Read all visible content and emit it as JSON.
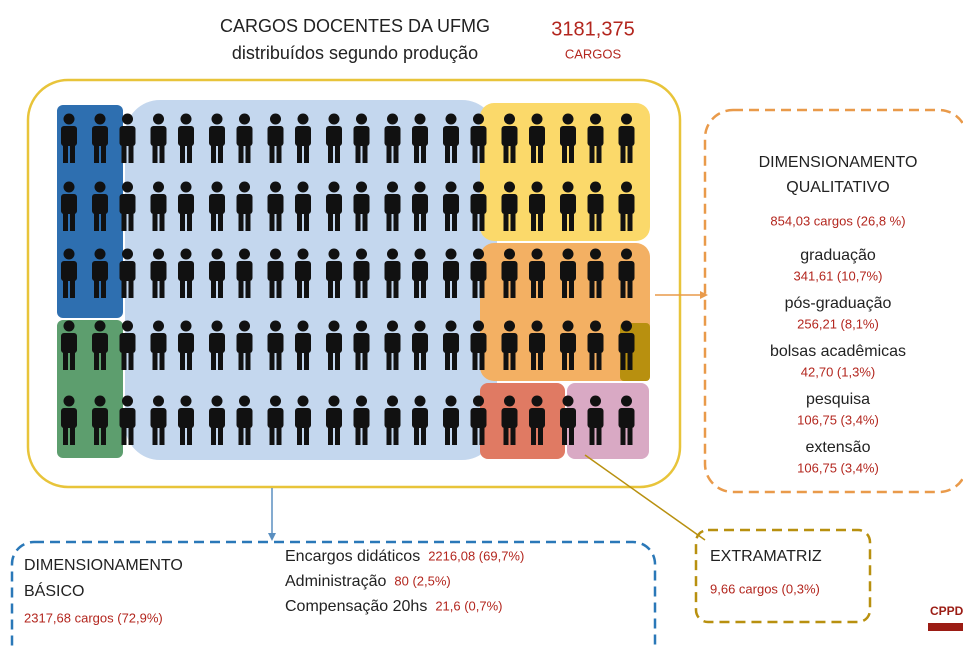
{
  "header": {
    "title": "CARGOS DOCENTES DA UFMG",
    "subtitle": "distribuídos segundo produção",
    "total": "3181,375",
    "total_unit": "CARGOS"
  },
  "qualitativo": {
    "title_line1": "DIMENSIONAMENTO",
    "title_line2": "QUALITATIVO",
    "summary": "854,03 cargos (26,8 %)",
    "items": [
      {
        "label": "graduação",
        "value": "341,61 (10,7%)"
      },
      {
        "label": "pós-graduação",
        "value": "256,21 (8,1%)"
      },
      {
        "label": "bolsas acadêmicas",
        "value": "42,70 (1,3%)"
      },
      {
        "label": "pesquisa",
        "value": "106,75 (3,4%)"
      },
      {
        "label": "extensão",
        "value": "106,75 (3,4%)"
      }
    ]
  },
  "basico": {
    "title_line1": "DIMENSIONAMENTO",
    "title_line2": "BÁSICO",
    "summary": "2317,68  cargos (72,9%)",
    "items": [
      {
        "label": "Encargos didáticos",
        "value": "2216,08 (69,7%)"
      },
      {
        "label": "Administração",
        "value": "80 (2,5%)"
      },
      {
        "label": "Compensação 20hs",
        "value": "21,6 (0,7%)"
      }
    ]
  },
  "extramatriz": {
    "title": "EXTRAMATRIZ",
    "summary": "9,66 cargos (0,3%)"
  },
  "footer": {
    "logo": "CPPD"
  }
}
